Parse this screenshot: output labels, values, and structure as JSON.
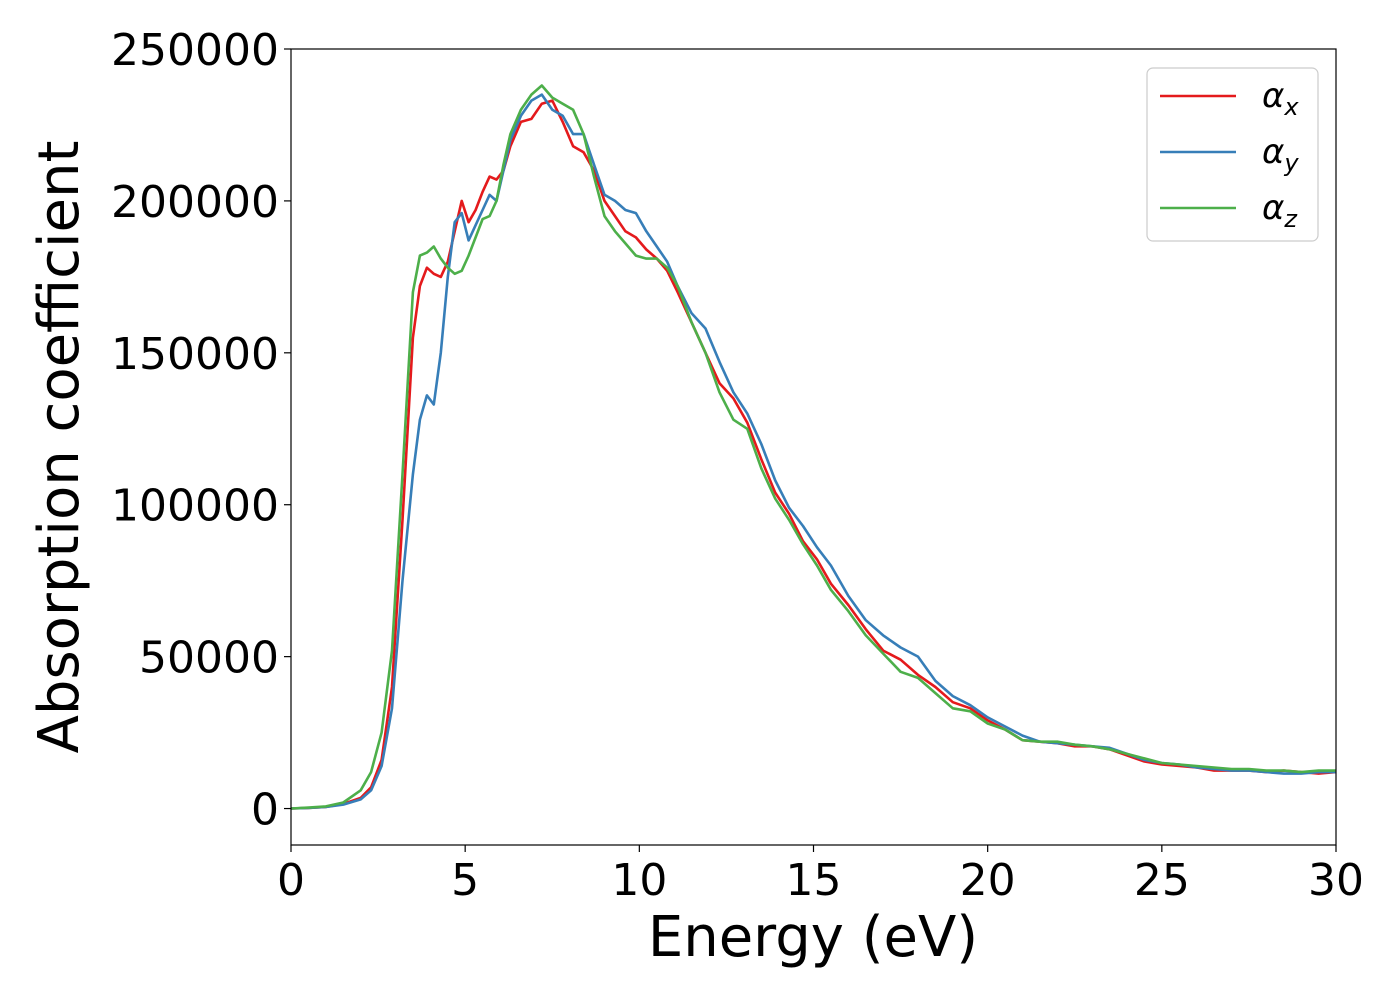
{
  "chart_data": {
    "type": "line",
    "title": "",
    "xlabel": "Energy (eV)",
    "ylabel": "Absorption coefficient",
    "xlim": [
      0,
      30
    ],
    "ylim": [
      -12000,
      250000
    ],
    "xticks": [
      0,
      5,
      10,
      15,
      20,
      25,
      30
    ],
    "yticks": [
      0,
      50000,
      100000,
      150000,
      200000,
      250000
    ],
    "xtick_labels": [
      "0",
      "5",
      "10",
      "15",
      "20",
      "25",
      "30"
    ],
    "ytick_labels": [
      "0",
      "50000",
      "100000",
      "150000",
      "200000",
      "250000"
    ],
    "grid": false,
    "legend_position": "top-right",
    "series": [
      {
        "name": "α",
        "subscript": "x",
        "color": "#e41a1c",
        "x": [
          0,
          0.5,
          1.0,
          1.5,
          2.0,
          2.3,
          2.6,
          2.9,
          3.2,
          3.5,
          3.7,
          3.9,
          4.1,
          4.3,
          4.5,
          4.7,
          4.9,
          5.1,
          5.3,
          5.5,
          5.7,
          5.9,
          6.1,
          6.3,
          6.6,
          6.9,
          7.2,
          7.5,
          7.8,
          8.1,
          8.4,
          8.7,
          9.0,
          9.3,
          9.6,
          9.9,
          10.2,
          10.5,
          10.8,
          11.1,
          11.5,
          11.9,
          12.3,
          12.7,
          13.1,
          13.5,
          13.9,
          14.3,
          14.7,
          15.1,
          15.5,
          16.0,
          16.5,
          17.0,
          17.5,
          18.0,
          18.5,
          19.0,
          19.5,
          20.0,
          20.5,
          21.0,
          21.5,
          22.0,
          22.5,
          23.0,
          23.5,
          24.0,
          24.5,
          25.0,
          25.5,
          26.0,
          26.5,
          27.0,
          27.5,
          28.0,
          28.5,
          29.0,
          29.5,
          30.0
        ],
        "values": [
          0,
          200,
          500,
          1500,
          3500,
          7000,
          16000,
          40000,
          95000,
          155000,
          172000,
          178000,
          176000,
          175000,
          180000,
          190000,
          200000,
          193000,
          197000,
          203000,
          208000,
          207000,
          210000,
          218000,
          226000,
          227000,
          232000,
          233000,
          226000,
          218000,
          216000,
          210000,
          200000,
          195000,
          190000,
          188000,
          184000,
          181000,
          177000,
          170000,
          160000,
          150000,
          140000,
          135000,
          127000,
          115000,
          104000,
          97000,
          88000,
          82000,
          74000,
          67000,
          59000,
          52000,
          49000,
          44000,
          40000,
          35000,
          33000,
          29000,
          26000,
          22500,
          22000,
          21500,
          20500,
          20500,
          19500,
          17500,
          15500,
          14500,
          14000,
          13500,
          12500,
          12500,
          12500,
          12000,
          12500,
          12000,
          11500,
          12000
        ]
      },
      {
        "name": "α",
        "subscript": "y",
        "color": "#377eb8",
        "x": [
          0,
          0.5,
          1.0,
          1.5,
          2.0,
          2.3,
          2.6,
          2.9,
          3.2,
          3.5,
          3.7,
          3.9,
          4.1,
          4.3,
          4.5,
          4.7,
          4.9,
          5.1,
          5.3,
          5.5,
          5.7,
          5.9,
          6.1,
          6.3,
          6.6,
          6.9,
          7.2,
          7.5,
          7.8,
          8.1,
          8.4,
          8.7,
          9.0,
          9.3,
          9.6,
          9.9,
          10.2,
          10.5,
          10.8,
          11.1,
          11.5,
          11.9,
          12.3,
          12.7,
          13.1,
          13.5,
          13.9,
          14.3,
          14.7,
          15.1,
          15.5,
          16.0,
          16.5,
          17.0,
          17.5,
          18.0,
          18.5,
          19.0,
          19.5,
          20.0,
          20.5,
          21.0,
          21.5,
          22.0,
          22.5,
          23.0,
          23.5,
          24.0,
          24.5,
          25.0,
          25.5,
          26.0,
          26.5,
          27.0,
          27.5,
          28.0,
          28.5,
          29.0,
          29.5,
          30.0
        ],
        "values": [
          0,
          200,
          500,
          1300,
          3000,
          6000,
          14000,
          33000,
          75000,
          110000,
          128000,
          136000,
          133000,
          150000,
          175000,
          193000,
          196000,
          187000,
          192000,
          197000,
          202000,
          200000,
          210000,
          220000,
          228000,
          233000,
          235000,
          230000,
          228000,
          222000,
          222000,
          212000,
          202000,
          200000,
          197000,
          196000,
          190000,
          185000,
          180000,
          172000,
          163000,
          158000,
          147000,
          137000,
          130000,
          120000,
          108000,
          99000,
          93000,
          86000,
          80000,
          70000,
          62000,
          57000,
          53000,
          50000,
          42000,
          37000,
          34000,
          30000,
          27000,
          24000,
          22000,
          21500,
          21000,
          20500,
          20000,
          18000,
          16000,
          15000,
          14500,
          13500,
          13000,
          12500,
          12500,
          12000,
          11500,
          11500,
          12000,
          12000
        ]
      },
      {
        "name": "α",
        "subscript": "z",
        "color": "#4daf4a",
        "x": [
          0,
          0.5,
          1.0,
          1.5,
          2.0,
          2.3,
          2.6,
          2.9,
          3.2,
          3.5,
          3.7,
          3.9,
          4.1,
          4.3,
          4.5,
          4.7,
          4.9,
          5.1,
          5.3,
          5.5,
          5.7,
          5.9,
          6.1,
          6.3,
          6.6,
          6.9,
          7.2,
          7.5,
          7.8,
          8.1,
          8.4,
          8.7,
          9.0,
          9.3,
          9.6,
          9.9,
          10.2,
          10.5,
          10.8,
          11.1,
          11.5,
          11.9,
          12.3,
          12.7,
          13.1,
          13.5,
          13.9,
          14.3,
          14.7,
          15.1,
          15.5,
          16.0,
          16.5,
          17.0,
          17.5,
          18.0,
          18.5,
          19.0,
          19.5,
          20.0,
          20.5,
          21.0,
          21.5,
          22.0,
          22.5,
          23.0,
          23.5,
          24.0,
          24.5,
          25.0,
          25.5,
          26.0,
          26.5,
          27.0,
          27.5,
          28.0,
          28.5,
          29.0,
          29.5,
          30.0
        ],
        "values": [
          0,
          300,
          700,
          2000,
          6000,
          12000,
          25000,
          52000,
          110000,
          170000,
          182000,
          183000,
          185000,
          181000,
          178000,
          176000,
          177000,
          182000,
          188000,
          194000,
          195000,
          200000,
          212000,
          222000,
          230000,
          235000,
          238000,
          234000,
          232000,
          230000,
          222000,
          208000,
          195000,
          190000,
          186000,
          182000,
          181000,
          181000,
          178000,
          172000,
          160000,
          150000,
          137000,
          128000,
          125000,
          112000,
          102000,
          95000,
          87000,
          80000,
          72000,
          65000,
          57000,
          51000,
          45000,
          43000,
          38000,
          33000,
          32000,
          28000,
          26000,
          22500,
          22000,
          22000,
          21000,
          20500,
          19500,
          18000,
          16500,
          15000,
          14500,
          14000,
          13500,
          13000,
          13000,
          12500,
          12500,
          12000,
          12500,
          12500
        ]
      }
    ]
  }
}
